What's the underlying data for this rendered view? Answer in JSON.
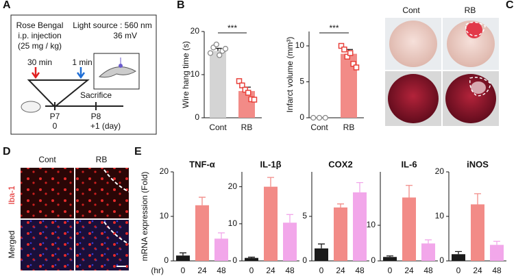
{
  "panel_labels": [
    "A",
    "B",
    "C",
    "D",
    "E"
  ],
  "panel_a": {
    "injection": [
      "Rose Bengal",
      "i.p. injection",
      "(25 mg / kg)"
    ],
    "light": [
      "Light source : 560 nm",
      "36 mV"
    ],
    "times": [
      "30 min",
      "1 min"
    ],
    "sacrifice": "Sacrifice",
    "day_labels": [
      "P7",
      "0",
      "P8",
      "+1 (day)"
    ]
  },
  "panel_c": {
    "columns": [
      "Cont",
      "RB"
    ]
  },
  "panel_d": {
    "columns": [
      "Cont",
      "RB"
    ],
    "rows": [
      "Iba-1",
      "Merged"
    ]
  },
  "chart_data": [
    {
      "type": "bar",
      "y_label": "Wire hang time (s)",
      "categories": [
        "Cont",
        "RB"
      ],
      "values": [
        15.5,
        6.2
      ],
      "errors": [
        0.6,
        0.9
      ],
      "points": [
        [
          15,
          16.3,
          17,
          14.5,
          15.5,
          16
        ],
        [
          8.5,
          7.5,
          6.5,
          5.8,
          4.3,
          4.2
        ]
      ],
      "colors": [
        "#d4d4d4",
        "#f28b87"
      ],
      "point_colors": [
        "#888888",
        "#e8403a"
      ],
      "point_shapes": [
        "circle",
        "square"
      ],
      "ylim": [
        0,
        20
      ],
      "yticks": [
        0,
        10,
        20
      ],
      "annotation": "***"
    },
    {
      "type": "bar",
      "y_label": "Infarct volume (mm³)",
      "categories": [
        "Cont",
        "RB"
      ],
      "values": [
        0,
        8.9
      ],
      "errors": [
        0,
        0.6
      ],
      "points": [
        [
          0,
          0,
          0
        ],
        [
          10,
          9.5,
          8.5,
          9,
          7.5,
          7
        ]
      ],
      "colors": [
        "#d4d4d4",
        "#f28b87"
      ],
      "point_colors": [
        "#888888",
        "#e8403a"
      ],
      "point_shapes": [
        "circle",
        "square"
      ],
      "ylim": [
        0,
        12
      ],
      "yticks": [
        0,
        5,
        10
      ],
      "annotation": "***"
    },
    {
      "type": "bar",
      "title": "TNF-α",
      "y_label": "mRNA expression (Fold)",
      "x_label": "(hr)",
      "categories": [
        "0",
        "24",
        "48"
      ],
      "values": [
        1.2,
        12.5,
        5
      ],
      "errors": [
        0.6,
        1.8,
        1.3
      ],
      "colors": [
        "#1a1a1a",
        "#f28b87",
        "#f2a7ea"
      ],
      "ylim": [
        0,
        20
      ],
      "yticks": [
        0,
        10,
        20
      ]
    },
    {
      "type": "bar",
      "title": "IL-1β",
      "categories": [
        "0",
        "24",
        "48"
      ],
      "values": [
        0.8,
        20,
        10.3
      ],
      "errors": [
        0.2,
        2.5,
        2.2
      ],
      "colors": [
        "#1a1a1a",
        "#f28b87",
        "#f2a7ea"
      ],
      "ylim": [
        0,
        24
      ],
      "yticks": [
        0,
        10,
        20
      ]
    },
    {
      "type": "bar",
      "title": "COX2",
      "categories": [
        "0",
        "24",
        "48"
      ],
      "values": [
        1.4,
        6,
        7.7
      ],
      "errors": [
        0.5,
        0.4,
        1.1
      ],
      "colors": [
        "#1a1a1a",
        "#f28b87",
        "#f2a7ea"
      ],
      "ylim": [
        0,
        10
      ],
      "yticks": [
        0,
        5
      ]
    },
    {
      "type": "bar",
      "title": "IL-6",
      "categories": [
        "0",
        "24",
        "48"
      ],
      "values": [
        1.1,
        17.8,
        4.9
      ],
      "errors": [
        0.3,
        3.4,
        1
      ],
      "colors": [
        "#1a1a1a",
        "#f28b87",
        "#f2a7ea"
      ],
      "ylim": [
        0,
        25
      ],
      "yticks": [
        0,
        10
      ]
    },
    {
      "type": "bar",
      "title": "iNOS",
      "categories": [
        "0",
        "24",
        "48"
      ],
      "values": [
        1.5,
        12.7,
        3.6
      ],
      "errors": [
        0.6,
        2.4,
        0.8
      ],
      "colors": [
        "#1a1a1a",
        "#f28b87",
        "#f2a7ea"
      ],
      "ylim": [
        0,
        20
      ],
      "yticks": [
        0,
        10,
        20
      ]
    }
  ]
}
